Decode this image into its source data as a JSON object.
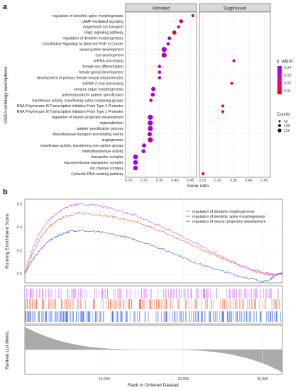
{
  "panel_labels": {
    "a": "a",
    "b": "b"
  },
  "chart_data": [
    {
      "type": "scatter",
      "facets": [
        "Activated",
        "Suppressed"
      ],
      "xlabel": "Gene ratio",
      "ylabel": "GSEA ontology descriptions",
      "xlim": [
        0.24,
        0.47
      ],
      "xticks": [
        0.25,
        0.3,
        0.35,
        0.4,
        0.45
      ],
      "xtick_labels": [
        "0.25",
        "0.30",
        "0.35",
        "0.40",
        "0.45"
      ],
      "grid": true,
      "legend_position": "right",
      "legend_color": {
        "title": "p. adjust",
        "labels": [
          "0.04",
          "0.03",
          "0.02",
          "0.01"
        ],
        "low_color": "#ff0000",
        "high_color": "#9900ff"
      },
      "legend_size": {
        "title": "Counts",
        "labels": [
          "50",
          "100",
          "150"
        ],
        "values": [
          50,
          100,
          150
        ]
      },
      "categories": [
        "regulation of dendritic spine morphogenesis",
        "cAMP-mediated signaling",
        "magnesium ion transport",
        "Rap1 signaling pathway",
        "regulation of dendrite morphogenesis",
        "Constitutive Signaling by Aberrant PI3K in Cancer",
        "visual system development",
        "eye development",
        "snRNA processing",
        "female sex differentiation",
        "female gonad development",
        "development of primary female sexual characteristics",
        "snRNA 3'-end processing",
        "sensory organ morphogenesis",
        "anterior/posterior pattern specification",
        "transferase activity, transferring sulfur-containing groups",
        "RNA Polymerase III Transcription Initiation From Type 2 Promoter",
        "RNA Polymerase III Transcription Initiation From Type 1 Promoter",
        "regulation of neuron projection development",
        "regionalization",
        "pattern specification process",
        "Miscellaneous transport and binding events",
        "angiogenesis",
        "transferase activity, transferring one-carbon groups",
        "methyltransferase activity",
        "transporter complex",
        "transmembrane transporter complex",
        "ion channel complex",
        "Cytosolic DNA-sensing pathway"
      ],
      "points": [
        {
          "facet": "Activated",
          "category": "regulation of dendritic spine morphogenesis",
          "x": 0.458,
          "count": 20,
          "p_adjust": 0.03
        },
        {
          "facet": "Activated",
          "category": "cAMP-mediated signaling",
          "x": 0.42,
          "count": 60,
          "p_adjust": 0.02
        },
        {
          "facet": "Activated",
          "category": "magnesium ion transport",
          "x": 0.412,
          "count": 25,
          "p_adjust": 0.04
        },
        {
          "facet": "Activated",
          "category": "Rap1 signaling pathway",
          "x": 0.398,
          "count": 80,
          "p_adjust": 0.01
        },
        {
          "facet": "Activated",
          "category": "regulation of dendrite morphogenesis",
          "x": 0.382,
          "count": 45,
          "p_adjust": 0.03
        },
        {
          "facet": "Activated",
          "category": "Constitutive Signaling by Aberrant PI3K in Cancer",
          "x": 0.378,
          "count": 35,
          "p_adjust": 0.03
        },
        {
          "facet": "Activated",
          "category": "visual system development",
          "x": 0.365,
          "count": 150,
          "p_adjust": 0.04
        },
        {
          "facet": "Activated",
          "category": "eye development",
          "x": 0.365,
          "count": 145,
          "p_adjust": 0.035
        },
        {
          "facet": "Suppressed",
          "category": "snRNA processing",
          "x": 0.352,
          "count": 25,
          "p_adjust": 0.03
        },
        {
          "facet": "Activated",
          "category": "female sex differentiation",
          "x": 0.35,
          "count": 30,
          "p_adjust": 0.035
        },
        {
          "facet": "Activated",
          "category": "female gonad development",
          "x": 0.35,
          "count": 30,
          "p_adjust": 0.035
        },
        {
          "facet": "Activated",
          "category": "development of primary female sexual characteristics",
          "x": 0.35,
          "count": 30,
          "p_adjust": 0.035
        },
        {
          "facet": "Suppressed",
          "category": "snRNA 3'-end processing",
          "x": 0.345,
          "count": 20,
          "p_adjust": 0.02
        },
        {
          "facet": "Activated",
          "category": "sensory organ morphogenesis",
          "x": 0.33,
          "count": 90,
          "p_adjust": 0.04
        },
        {
          "facet": "Activated",
          "category": "anterior/posterior pattern specification",
          "x": 0.328,
          "count": 70,
          "p_adjust": 0.04
        },
        {
          "facet": "Activated",
          "category": "transferase activity, transferring sulfur-containing groups",
          "x": 0.322,
          "count": 35,
          "p_adjust": 0.03
        },
        {
          "facet": "Suppressed",
          "category": "RNA Polymerase III Transcription Initiation From Type 2 Promoter",
          "x": 0.316,
          "count": 20,
          "p_adjust": 0.01
        },
        {
          "facet": "Suppressed",
          "category": "RNA Polymerase III Transcription Initiation From Type 1 Promoter",
          "x": 0.316,
          "count": 20,
          "p_adjust": 0.01
        },
        {
          "facet": "Activated",
          "category": "regulation of neuron projection development",
          "x": 0.32,
          "count": 150,
          "p_adjust": 0.04
        },
        {
          "facet": "Activated",
          "category": "regionalization",
          "x": 0.32,
          "count": 145,
          "p_adjust": 0.04
        },
        {
          "facet": "Activated",
          "category": "pattern specification process",
          "x": 0.32,
          "count": 150,
          "p_adjust": 0.04
        },
        {
          "facet": "Activated",
          "category": "Miscellaneous transport and binding events",
          "x": 0.318,
          "count": 100,
          "p_adjust": 0.035
        },
        {
          "facet": "Activated",
          "category": "angiogenesis",
          "x": 0.32,
          "count": 150,
          "p_adjust": 0.03
        },
        {
          "facet": "Activated",
          "category": "transferase activity, transferring one-carbon groups",
          "x": 0.3,
          "count": 75,
          "p_adjust": 0.04
        },
        {
          "facet": "Activated",
          "category": "methyltransferase activity",
          "x": 0.298,
          "count": 65,
          "p_adjust": 0.04
        },
        {
          "facet": "Activated",
          "category": "transporter complex",
          "x": 0.272,
          "count": 120,
          "p_adjust": 0.04
        },
        {
          "facet": "Activated",
          "category": "transmembrane transporter complex",
          "x": 0.272,
          "count": 115,
          "p_adjust": 0.04
        },
        {
          "facet": "Activated",
          "category": "ion channel complex",
          "x": 0.272,
          "count": 110,
          "p_adjust": 0.04
        },
        {
          "facet": "Suppressed",
          "category": "Cytosolic DNA-sensing pathway",
          "x": 0.252,
          "count": 20,
          "p_adjust": 0.01
        }
      ]
    },
    {
      "type": "line",
      "xlabel": "Rank in Ordered Dataset",
      "ylabel_top": "Running Enrichment Score",
      "ylabel_bottom": "Ranked List Metric",
      "xlim": [
        0,
        32500
      ],
      "ylim": [
        -0.08,
        0.64
      ],
      "xticks": [
        10000,
        20000,
        30000
      ],
      "xtick_labels": [
        "10,000",
        "20,000",
        "30,000"
      ],
      "yticks": [
        0.0,
        0.2,
        0.4,
        0.6
      ],
      "ytick_labels": [
        "0.0",
        "0.2",
        "0.4",
        "0.6"
      ],
      "legend_position": "top-right",
      "series": [
        {
          "name": "regulation of dendrite morphogenesis",
          "color": "#cc66ff",
          "x": [
            0,
            1000,
            2000,
            3000,
            4000,
            5000,
            6000,
            7000,
            9000,
            11000,
            13000,
            15000,
            17000,
            19000,
            21000,
            23000,
            25000,
            27000,
            29000,
            30000,
            30800,
            31500,
            32500
          ],
          "y": [
            0.0,
            0.22,
            0.36,
            0.46,
            0.52,
            0.56,
            0.59,
            0.6,
            0.59,
            0.56,
            0.52,
            0.47,
            0.41,
            0.35,
            0.28,
            0.21,
            0.14,
            0.08,
            0.03,
            0.01,
            0.0,
            -0.01,
            0.0
          ]
        },
        {
          "name": "regulation of dendritic spine morphogenesis",
          "color": "#f07050",
          "x": [
            0,
            1000,
            2000,
            3000,
            4000,
            5000,
            6000,
            7000,
            9000,
            11000,
            13000,
            15000,
            17000,
            19000,
            21000,
            23000,
            25000,
            27000,
            29000,
            30000,
            30800,
            31500,
            32500
          ],
          "y": [
            0.0,
            0.18,
            0.31,
            0.4,
            0.45,
            0.49,
            0.51,
            0.52,
            0.51,
            0.49,
            0.46,
            0.42,
            0.37,
            0.31,
            0.25,
            0.19,
            0.13,
            0.07,
            0.02,
            0.0,
            -0.01,
            -0.01,
            0.0
          ]
        },
        {
          "name": "regulation of neuron projection development",
          "color": "#4a70e0",
          "x": [
            0,
            1000,
            2000,
            3000,
            4000,
            5000,
            6000,
            7000,
            9000,
            11000,
            13000,
            15000,
            17000,
            19000,
            21000,
            23000,
            25000,
            27000,
            29000,
            30000,
            30800,
            31500,
            32500
          ],
          "y": [
            0.0,
            0.12,
            0.21,
            0.28,
            0.32,
            0.35,
            0.37,
            0.37,
            0.36,
            0.34,
            0.31,
            0.27,
            0.22,
            0.17,
            0.11,
            0.06,
            0.02,
            -0.02,
            -0.05,
            -0.07,
            -0.06,
            -0.02,
            0.01
          ]
        }
      ],
      "ranked_metric_fill": "#aaaaaa"
    }
  ]
}
